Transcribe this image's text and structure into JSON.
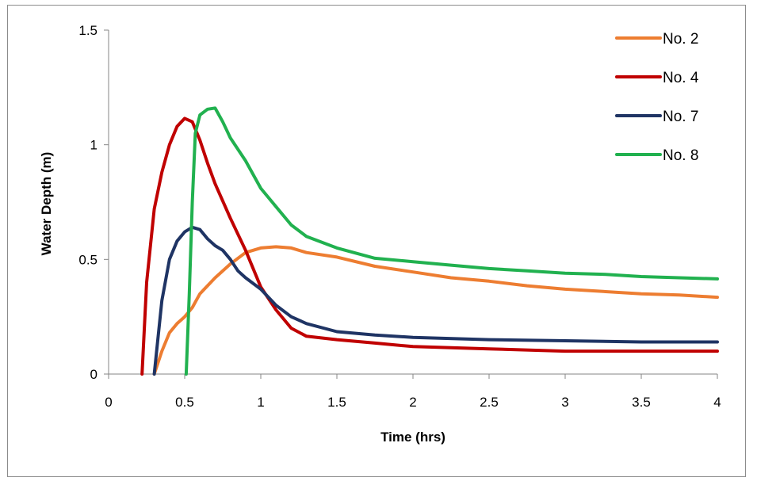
{
  "chart_data": {
    "type": "line",
    "title": "",
    "xlabel": "Time (hrs)",
    "ylabel": "Water Depth (m)",
    "xlim": [
      0,
      4
    ],
    "ylim": [
      0,
      1.5
    ],
    "x_ticks": [
      "0",
      "0.5",
      "1",
      "1.5",
      "2",
      "2.5",
      "3",
      "3.5",
      "4"
    ],
    "y_ticks": [
      "0",
      "0.5",
      "1",
      "1.5"
    ],
    "grid": false,
    "legend_position": "top-right",
    "series": [
      {
        "name": "No. 2",
        "color": "#ED7D31",
        "points": [
          [
            0.3,
            0
          ],
          [
            0.35,
            0.1
          ],
          [
            0.4,
            0.18
          ],
          [
            0.45,
            0.22
          ],
          [
            0.5,
            0.25
          ],
          [
            0.55,
            0.29
          ],
          [
            0.6,
            0.35
          ],
          [
            0.7,
            0.42
          ],
          [
            0.8,
            0.48
          ],
          [
            0.9,
            0.53
          ],
          [
            1.0,
            0.55
          ],
          [
            1.1,
            0.555
          ],
          [
            1.2,
            0.55
          ],
          [
            1.3,
            0.53
          ],
          [
            1.5,
            0.51
          ],
          [
            1.75,
            0.47
          ],
          [
            2.0,
            0.445
          ],
          [
            2.25,
            0.42
          ],
          [
            2.5,
            0.405
          ],
          [
            2.75,
            0.385
          ],
          [
            3.0,
            0.37
          ],
          [
            3.25,
            0.36
          ],
          [
            3.5,
            0.35
          ],
          [
            3.75,
            0.345
          ],
          [
            4.0,
            0.335
          ]
        ]
      },
      {
        "name": "No. 4",
        "color": "#C00000",
        "points": [
          [
            0.22,
            0
          ],
          [
            0.25,
            0.4
          ],
          [
            0.3,
            0.72
          ],
          [
            0.35,
            0.88
          ],
          [
            0.4,
            1.0
          ],
          [
            0.45,
            1.08
          ],
          [
            0.5,
            1.115
          ],
          [
            0.55,
            1.1
          ],
          [
            0.6,
            1.02
          ],
          [
            0.65,
            0.92
          ],
          [
            0.7,
            0.83
          ],
          [
            0.8,
            0.68
          ],
          [
            0.9,
            0.54
          ],
          [
            1.0,
            0.38
          ],
          [
            1.1,
            0.28
          ],
          [
            1.2,
            0.2
          ],
          [
            1.3,
            0.165
          ],
          [
            1.5,
            0.15
          ],
          [
            1.75,
            0.135
          ],
          [
            2.0,
            0.12
          ],
          [
            2.5,
            0.11
          ],
          [
            3.0,
            0.1
          ],
          [
            3.5,
            0.1
          ],
          [
            4.0,
            0.1
          ]
        ]
      },
      {
        "name": "No. 7",
        "color": "#1F3464",
        "points": [
          [
            0.3,
            0
          ],
          [
            0.35,
            0.32
          ],
          [
            0.4,
            0.5
          ],
          [
            0.45,
            0.58
          ],
          [
            0.5,
            0.62
          ],
          [
            0.55,
            0.64
          ],
          [
            0.6,
            0.63
          ],
          [
            0.65,
            0.59
          ],
          [
            0.7,
            0.56
          ],
          [
            0.75,
            0.54
          ],
          [
            0.8,
            0.5
          ],
          [
            0.85,
            0.45
          ],
          [
            0.9,
            0.42
          ],
          [
            1.0,
            0.37
          ],
          [
            1.1,
            0.3
          ],
          [
            1.2,
            0.25
          ],
          [
            1.3,
            0.22
          ],
          [
            1.5,
            0.185
          ],
          [
            1.75,
            0.17
          ],
          [
            2.0,
            0.16
          ],
          [
            2.5,
            0.15
          ],
          [
            3.0,
            0.145
          ],
          [
            3.5,
            0.14
          ],
          [
            4.0,
            0.14
          ]
        ]
      },
      {
        "name": "No. 8",
        "color": "#21B14F",
        "points": [
          [
            0.51,
            0
          ],
          [
            0.53,
            0.35
          ],
          [
            0.55,
            0.75
          ],
          [
            0.57,
            1.05
          ],
          [
            0.6,
            1.13
          ],
          [
            0.65,
            1.155
          ],
          [
            0.7,
            1.16
          ],
          [
            0.75,
            1.1
          ],
          [
            0.8,
            1.03
          ],
          [
            0.9,
            0.93
          ],
          [
            1.0,
            0.81
          ],
          [
            1.1,
            0.73
          ],
          [
            1.2,
            0.65
          ],
          [
            1.3,
            0.6
          ],
          [
            1.5,
            0.55
          ],
          [
            1.75,
            0.505
          ],
          [
            2.0,
            0.49
          ],
          [
            2.25,
            0.475
          ],
          [
            2.5,
            0.46
          ],
          [
            2.75,
            0.45
          ],
          [
            3.0,
            0.44
          ],
          [
            3.25,
            0.435
          ],
          [
            3.5,
            0.425
          ],
          [
            3.75,
            0.42
          ],
          [
            4.0,
            0.415
          ]
        ]
      }
    ]
  }
}
